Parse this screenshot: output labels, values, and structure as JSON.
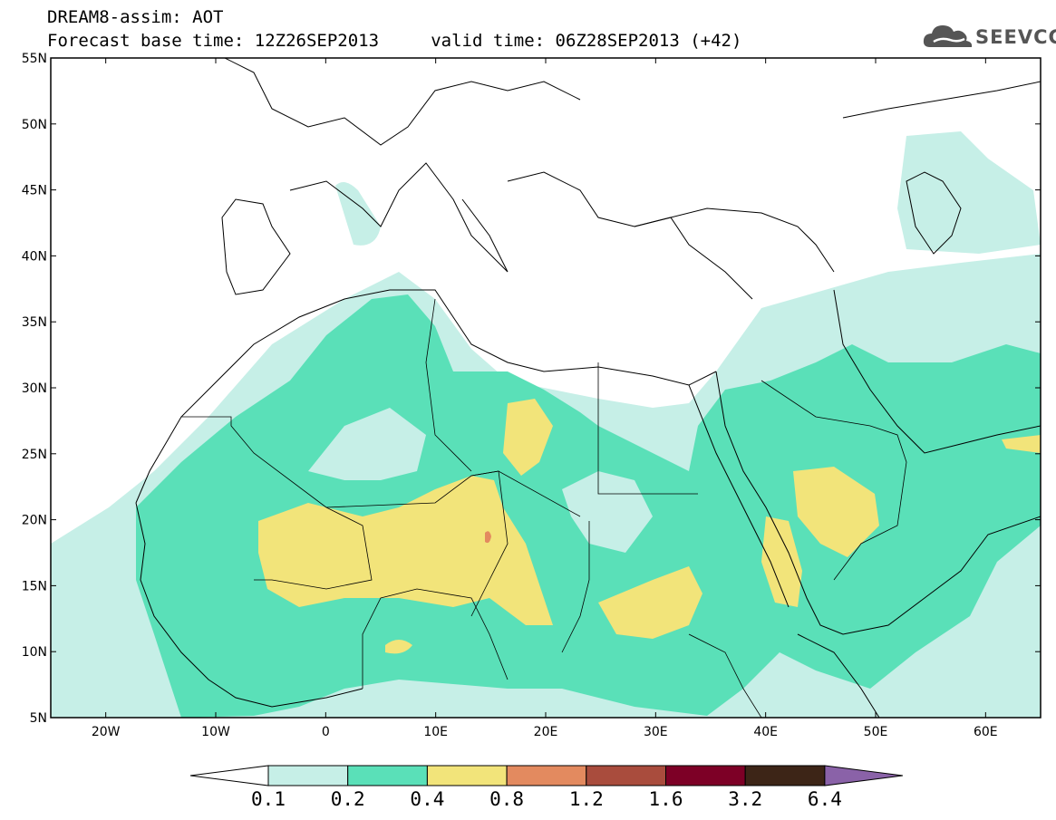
{
  "title": {
    "line1": "DREAM8-assim: AOT",
    "line2": "Forecast base time: 12Z26SEP2013     valid time: 06Z28SEP2013 (+42)"
  },
  "logo": {
    "text": "SEEVCCC",
    "icon": "cloud-icon"
  },
  "map": {
    "projection": "equirectangular",
    "lon_range": [
      -25,
      65
    ],
    "lat_range": [
      5,
      55
    ],
    "lat_labels": [
      "55N",
      "50N",
      "45N",
      "40N",
      "35N",
      "30N",
      "25N",
      "20N",
      "15N",
      "10N",
      "5N"
    ],
    "lon_labels": [
      "20W",
      "10W",
      "0",
      "10E",
      "20E",
      "30E",
      "40E",
      "50E",
      "60E"
    ]
  },
  "colorbar": {
    "labels": [
      "0.1",
      "0.2",
      "0.4",
      "0.8",
      "1.2",
      "1.6",
      "3.2",
      "6.4"
    ],
    "colors": [
      "#ffffff",
      "#c6efe7",
      "#5ae0b8",
      "#f2e47a",
      "#e38a5f",
      "#a94c3d",
      "#7d0026",
      "#3d2517",
      "#8a62a8"
    ]
  }
}
